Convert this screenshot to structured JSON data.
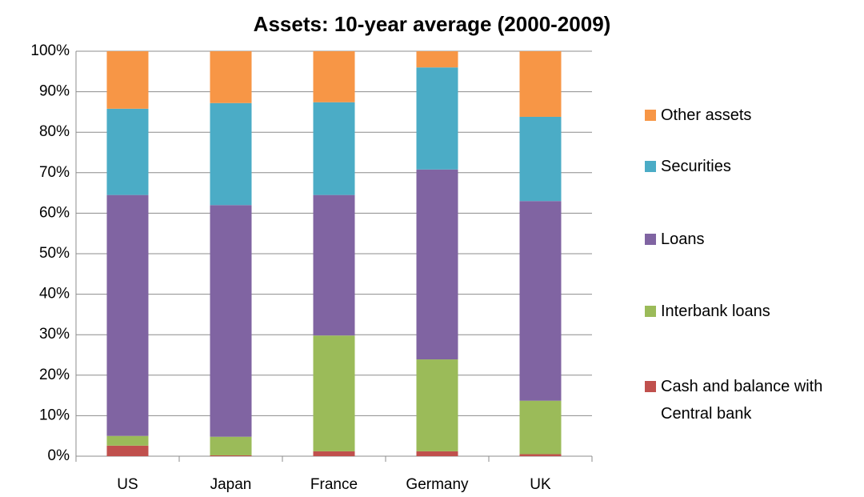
{
  "chart_data": {
    "type": "stacked_bar",
    "title": "Assets:  10-year average (2000-2009)",
    "categories": [
      "US",
      "Japan",
      "France",
      "Germany",
      "UK"
    ],
    "series": [
      {
        "name": "Cash and balance with Central bank",
        "color": "#c0504d",
        "values": [
          2.6,
          0.2,
          1.2,
          1.2,
          0.5
        ]
      },
      {
        "name": "Interbank loans",
        "color": "#9bbb59",
        "values": [
          2.4,
          4.6,
          28.6,
          22.7,
          13.2
        ]
      },
      {
        "name": "Loans",
        "color": "#8064a2",
        "values": [
          59.5,
          57.2,
          34.7,
          46.9,
          49.3
        ]
      },
      {
        "name": "Securities",
        "color": "#4bacc6",
        "values": [
          21.3,
          25.2,
          22.9,
          25.2,
          20.8
        ]
      },
      {
        "name": "Other assets",
        "color": "#f79646",
        "values": [
          14.2,
          12.8,
          12.6,
          4.0,
          16.2
        ]
      }
    ],
    "ylim": [
      0,
      100
    ],
    "yticks": [
      {
        "value": 0,
        "label": "0%"
      },
      {
        "value": 10,
        "label": "10%"
      },
      {
        "value": 20,
        "label": "20%"
      },
      {
        "value": 30,
        "label": "30%"
      },
      {
        "value": 40,
        "label": "40%"
      },
      {
        "value": 50,
        "label": "50%"
      },
      {
        "value": 60,
        "label": "60%"
      },
      {
        "value": 70,
        "label": "70%"
      },
      {
        "value": 80,
        "label": "80%"
      },
      {
        "value": 90,
        "label": "90%"
      },
      {
        "value": 100,
        "label": "100%"
      }
    ],
    "grid": true,
    "legend": "right"
  }
}
